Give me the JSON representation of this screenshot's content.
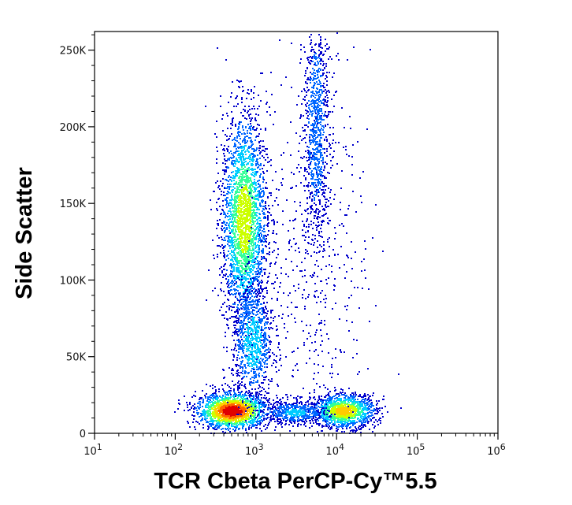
{
  "chart_data": {
    "type": "scatter",
    "style": "flow-cytometry density dot plot (pseudocolor)",
    "title": "",
    "xlabel": "TCR Cbeta PerCP-Cy™5.5",
    "ylabel": "Side Scatter",
    "x_scale": "log",
    "xlim": [
      10,
      1000000
    ],
    "ylim": [
      0,
      262144
    ],
    "x_ticks": [
      {
        "value": 10,
        "base": "10",
        "exp": "1"
      },
      {
        "value": 100,
        "base": "10",
        "exp": "2"
      },
      {
        "value": 1000,
        "base": "10",
        "exp": "3"
      },
      {
        "value": 10000,
        "base": "10",
        "exp": "4"
      },
      {
        "value": 100000,
        "base": "10",
        "exp": "5"
      },
      {
        "value": 1000000,
        "base": "10",
        "exp": "6"
      }
    ],
    "y_ticks": [
      {
        "value": 0,
        "label": "0"
      },
      {
        "value": 50000,
        "label": "50K"
      },
      {
        "value": 100000,
        "label": "100K"
      },
      {
        "value": 150000,
        "label": "150K"
      },
      {
        "value": 200000,
        "label": "200K"
      },
      {
        "value": 250000,
        "label": "250K"
      }
    ],
    "color_scale": [
      "#0000cc",
      "#0066ff",
      "#00ccff",
      "#33ff99",
      "#ccff00",
      "#ffcc00",
      "#ff6600",
      "#e00000"
    ],
    "populations": [
      {
        "name": "",
        "x_center": 500,
        "y_center": 15000,
        "x_spread_log": 0.22,
        "y_spread": 6000,
        "points": 1700,
        "peak_density": 1.0
      },
      {
        "name": "",
        "x_center": 700,
        "y_center": 140000,
        "x_spread_log": 0.14,
        "y_spread": 35000,
        "points": 2600,
        "peak_density": 0.6
      },
      {
        "name": "",
        "x_center": 900,
        "y_center": 60000,
        "x_spread_log": 0.13,
        "y_spread": 20000,
        "points": 900,
        "peak_density": 0.35
      },
      {
        "name": "",
        "x_center": 12000,
        "y_center": 15000,
        "x_spread_log": 0.2,
        "y_spread": 5500,
        "points": 1300,
        "peak_density": 0.7
      },
      {
        "name": "",
        "x_center": 3000,
        "y_center": 14000,
        "x_spread_log": 0.2,
        "y_spread": 4000,
        "points": 500,
        "peak_density": 0.3
      },
      {
        "name": "",
        "x_center": 5500,
        "y_center": 200000,
        "x_spread_log": 0.08,
        "y_spread": 40000,
        "points": 900,
        "peak_density": 0.25
      },
      {
        "name": "",
        "x_center": 5000,
        "y_center": 120000,
        "x_spread_log": 0.35,
        "y_spread": 60000,
        "points": 500,
        "peak_density": 0.05
      }
    ]
  }
}
